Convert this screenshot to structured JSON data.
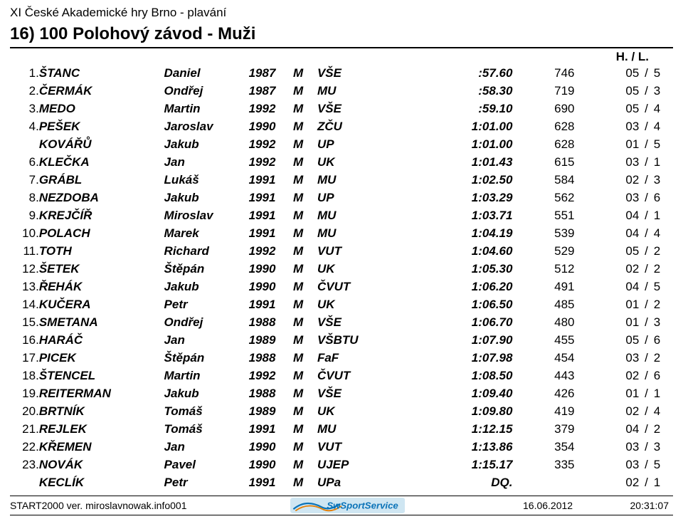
{
  "header": {
    "competition": "XI České Akademické hry Brno - plavání",
    "event_title": "16)  100  Polohový závod  -  Muži",
    "column_title": "H. / L."
  },
  "results": [
    {
      "rank": "1.",
      "last": "ŠTANC",
      "first": "Daniel",
      "year": "1987",
      "sex": "M",
      "team": "VŠE",
      "time": ":57.60",
      "pts": "746",
      "h": "05",
      "l": "5"
    },
    {
      "rank": "2.",
      "last": "ČERMÁK",
      "first": "Ondřej",
      "year": "1987",
      "sex": "M",
      "team": "MU",
      "time": ":58.30",
      "pts": "719",
      "h": "05",
      "l": "3"
    },
    {
      "rank": "3.",
      "last": "MEDO",
      "first": "Martin",
      "year": "1992",
      "sex": "M",
      "team": "VŠE",
      "time": ":59.10",
      "pts": "690",
      "h": "05",
      "l": "4"
    },
    {
      "rank": "4.",
      "last": "PEŠEK",
      "first": "Jaroslav",
      "year": "1990",
      "sex": "M",
      "team": "ZČU",
      "time": "1:01.00",
      "pts": "628",
      "h": "03",
      "l": "4"
    },
    {
      "rank": "",
      "last": "KOVÁŘŮ",
      "first": "Jakub",
      "year": "1992",
      "sex": "M",
      "team": "UP",
      "time": "1:01.00",
      "pts": "628",
      "h": "01",
      "l": "5"
    },
    {
      "rank": "6.",
      "last": "KLEČKA",
      "first": "Jan",
      "year": "1992",
      "sex": "M",
      "team": "UK",
      "time": "1:01.43",
      "pts": "615",
      "h": "03",
      "l": "1"
    },
    {
      "rank": "7.",
      "last": "GRÁBL",
      "first": "Lukáš",
      "year": "1991",
      "sex": "M",
      "team": "MU",
      "time": "1:02.50",
      "pts": "584",
      "h": "02",
      "l": "3"
    },
    {
      "rank": "8.",
      "last": "NEZDOBA",
      "first": "Jakub",
      "year": "1991",
      "sex": "M",
      "team": "UP",
      "time": "1:03.29",
      "pts": "562",
      "h": "03",
      "l": "6"
    },
    {
      "rank": "9.",
      "last": "KREJČÍŘ",
      "first": "Miroslav",
      "year": "1991",
      "sex": "M",
      "team": "MU",
      "time": "1:03.71",
      "pts": "551",
      "h": "04",
      "l": "1"
    },
    {
      "rank": "10.",
      "last": "POLACH",
      "first": "Marek",
      "year": "1991",
      "sex": "M",
      "team": "MU",
      "time": "1:04.19",
      "pts": "539",
      "h": "04",
      "l": "4"
    },
    {
      "rank": "11.",
      "last": "TOTH",
      "first": "Richard",
      "year": "1992",
      "sex": "M",
      "team": "VUT",
      "time": "1:04.60",
      "pts": "529",
      "h": "05",
      "l": "2"
    },
    {
      "rank": "12.",
      "last": "ŠETEK",
      "first": "Štěpán",
      "year": "1990",
      "sex": "M",
      "team": "UK",
      "time": "1:05.30",
      "pts": "512",
      "h": "02",
      "l": "2"
    },
    {
      "rank": "13.",
      "last": "ŘEHÁK",
      "first": "Jakub",
      "year": "1990",
      "sex": "M",
      "team": "ČVUT",
      "time": "1:06.20",
      "pts": "491",
      "h": "04",
      "l": "5"
    },
    {
      "rank": "14.",
      "last": "KUČERA",
      "first": "Petr",
      "year": "1991",
      "sex": "M",
      "team": "UK",
      "time": "1:06.50",
      "pts": "485",
      "h": "01",
      "l": "2"
    },
    {
      "rank": "15.",
      "last": "SMETANA",
      "first": "Ondřej",
      "year": "1988",
      "sex": "M",
      "team": "VŠE",
      "time": "1:06.70",
      "pts": "480",
      "h": "01",
      "l": "3"
    },
    {
      "rank": "16.",
      "last": "HARÁČ",
      "first": "Jan",
      "year": "1989",
      "sex": "M",
      "team": "VŠBTU",
      "time": "1:07.90",
      "pts": "455",
      "h": "05",
      "l": "6"
    },
    {
      "rank": "17.",
      "last": "PICEK",
      "first": "Štěpán",
      "year": "1988",
      "sex": "M",
      "team": "FaF",
      "time": "1:07.98",
      "pts": "454",
      "h": "03",
      "l": "2"
    },
    {
      "rank": "18.",
      "last": "ŠTENCEL",
      "first": "Martin",
      "year": "1992",
      "sex": "M",
      "team": "ČVUT",
      "time": "1:08.50",
      "pts": "443",
      "h": "02",
      "l": "6"
    },
    {
      "rank": "19.",
      "last": "REITERMAN",
      "first": "Jakub",
      "year": "1988",
      "sex": "M",
      "team": "VŠE",
      "time": "1:09.40",
      "pts": "426",
      "h": "01",
      "l": "1"
    },
    {
      "rank": "20.",
      "last": "BRTNÍK",
      "first": "Tomáš",
      "year": "1989",
      "sex": "M",
      "team": "UK",
      "time": "1:09.80",
      "pts": "419",
      "h": "02",
      "l": "4"
    },
    {
      "rank": "21.",
      "last": "REJLEK",
      "first": "Tomáš",
      "year": "1991",
      "sex": "M",
      "team": "MU",
      "time": "1:12.15",
      "pts": "379",
      "h": "04",
      "l": "2"
    },
    {
      "rank": "22.",
      "last": "KŘEMEN",
      "first": "Jan",
      "year": "1990",
      "sex": "M",
      "team": "VUT",
      "time": "1:13.86",
      "pts": "354",
      "h": "03",
      "l": "3"
    },
    {
      "rank": "23.",
      "last": "NOVÁK",
      "first": "Pavel",
      "year": "1990",
      "sex": "M",
      "team": "UJEP",
      "time": "1:15.17",
      "pts": "335",
      "h": "03",
      "l": "5"
    },
    {
      "rank": "",
      "last": "KECLÍK",
      "first": "Petr",
      "year": "1991",
      "sex": "M",
      "team": "UPa",
      "time": "DQ.",
      "pts": "",
      "h": "02",
      "l": "1"
    }
  ],
  "footer": {
    "software": "START2000 ver.  miroslavnowak.info001",
    "date": "16.06.2012",
    "time": "20:31:07",
    "logo_text": "SwSportService",
    "logo_bg": "#cfe6f2",
    "logo_blue": "#0b73b8",
    "logo_orange": "#e57c00"
  }
}
